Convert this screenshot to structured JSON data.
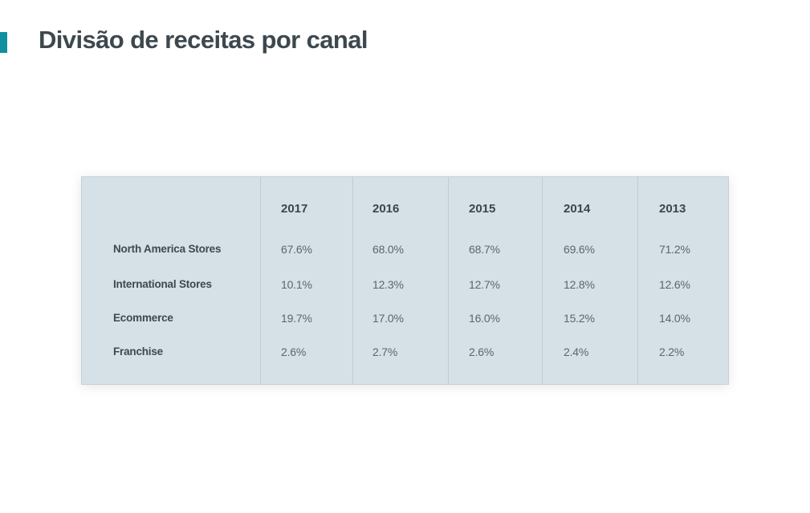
{
  "page": {
    "title": "Divisão de receitas por canal"
  },
  "colors": {
    "accent": "#0f8fa0",
    "table_background": "#d5e1e7",
    "title_text": "#3d484e"
  },
  "chart_data": {
    "type": "table",
    "columns": [
      "2017",
      "2016",
      "2015",
      "2014",
      "2013"
    ],
    "rows": [
      {
        "label": "North America Stores",
        "values": [
          "67.6%",
          "68.0%",
          "68.7%",
          "69.6%",
          "71.2%"
        ]
      },
      {
        "label": "International Stores",
        "values": [
          "10.1%",
          "12.3%",
          "12.7%",
          "12.8%",
          "12.6%"
        ]
      },
      {
        "label": "Ecommerce",
        "values": [
          "19.7%",
          "17.0%",
          "16.0%",
          "15.2%",
          "14.0%"
        ]
      },
      {
        "label": "Franchise",
        "values": [
          "2.6%",
          "2.7%",
          "2.6%",
          "2.4%",
          "2.2%"
        ]
      }
    ]
  }
}
